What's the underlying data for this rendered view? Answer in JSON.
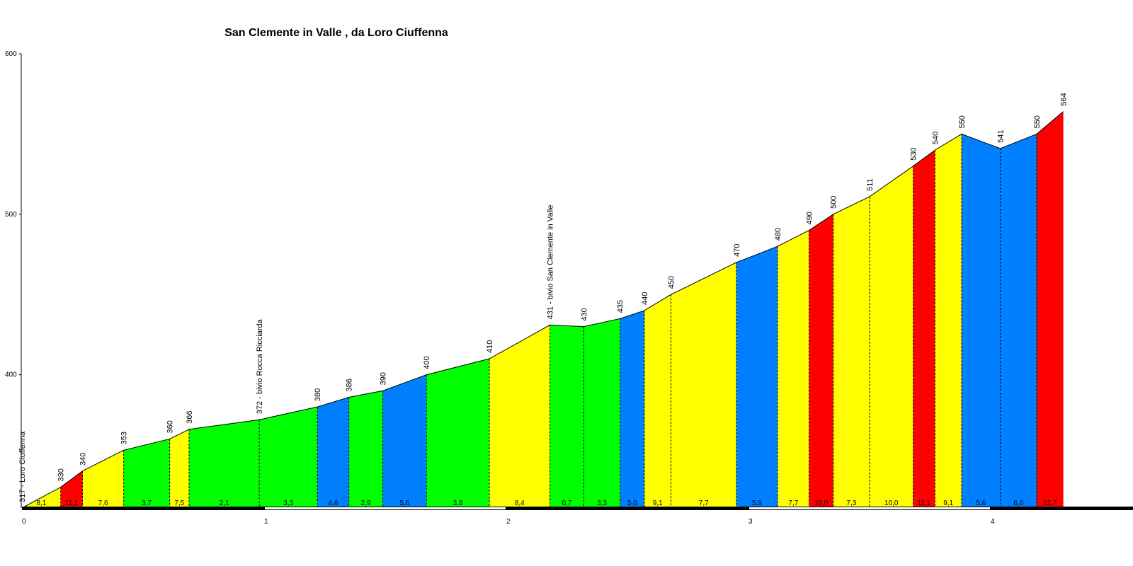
{
  "chart_data": {
    "type": "area",
    "title": "San Clemente in Valle , da Loro Ciuffenna",
    "xlabel": "",
    "ylabel": "",
    "xlim": [
      0,
      4.6
    ],
    "ylim": [
      317,
      600
    ],
    "x_ticks": [
      "0",
      "1",
      "2",
      "3",
      "4"
    ],
    "y_ticks": [
      "400",
      "500",
      "600"
    ],
    "grid": false,
    "legend": "none",
    "colors": {
      "yellow": "#ffff00",
      "red": "#ff0000",
      "green": "#00ff00",
      "blue": "#0080ff",
      "axis": "#000000"
    },
    "points": [
      {
        "x": 0.0,
        "elev": 317,
        "label": "317 - Loro Ciuffenna"
      },
      {
        "x": 0.16,
        "elev": 330,
        "label": "330"
      },
      {
        "x": 0.25,
        "elev": 340,
        "label": "340"
      },
      {
        "x": 0.42,
        "elev": 353,
        "label": "353"
      },
      {
        "x": 0.61,
        "elev": 360,
        "label": "360"
      },
      {
        "x": 0.69,
        "elev": 366,
        "label": "366"
      },
      {
        "x": 0.98,
        "elev": 372,
        "label": "372 - bivio Rocca Ricciarda"
      },
      {
        "x": 1.22,
        "elev": 380,
        "label": "380"
      },
      {
        "x": 1.35,
        "elev": 386,
        "label": "386"
      },
      {
        "x": 1.49,
        "elev": 390,
        "label": "390"
      },
      {
        "x": 1.67,
        "elev": 400,
        "label": "400"
      },
      {
        "x": 1.93,
        "elev": 410,
        "label": "410"
      },
      {
        "x": 2.18,
        "elev": 431,
        "label": "431 - bivio San Clemente in Valle"
      },
      {
        "x": 2.32,
        "elev": 430,
        "label": "430"
      },
      {
        "x": 2.47,
        "elev": 435,
        "label": "435"
      },
      {
        "x": 2.57,
        "elev": 440,
        "label": "440"
      },
      {
        "x": 2.68,
        "elev": 450,
        "label": "450"
      },
      {
        "x": 2.95,
        "elev": 470,
        "label": "470"
      },
      {
        "x": 3.12,
        "elev": 480,
        "label": "480"
      },
      {
        "x": 3.25,
        "elev": 490,
        "label": "490"
      },
      {
        "x": 3.35,
        "elev": 500,
        "label": "500"
      },
      {
        "x": 3.5,
        "elev": 511,
        "label": "511"
      },
      {
        "x": 3.68,
        "elev": 530,
        "label": "530"
      },
      {
        "x": 3.77,
        "elev": 540,
        "label": "540"
      },
      {
        "x": 3.88,
        "elev": 550,
        "label": "550"
      },
      {
        "x": 4.04,
        "elev": 541,
        "label": "541"
      },
      {
        "x": 4.19,
        "elev": 550,
        "label": "550"
      },
      {
        "x": 4.3,
        "elev": 564,
        "label": "564"
      }
    ],
    "segments": [
      {
        "grade": "8,1",
        "color": "yellow"
      },
      {
        "grade": "11,1",
        "color": "red"
      },
      {
        "grade": "7,6",
        "color": "yellow"
      },
      {
        "grade": "3,7",
        "color": "green"
      },
      {
        "grade": "7,5",
        "color": "yellow"
      },
      {
        "grade": "2,1",
        "color": "green"
      },
      {
        "grade": "3,3",
        "color": "green"
      },
      {
        "grade": "4,6",
        "color": "blue"
      },
      {
        "grade": "2,9",
        "color": "green"
      },
      {
        "grade": "5,6",
        "color": "blue"
      },
      {
        "grade": "3,8",
        "color": "green"
      },
      {
        "grade": "8,4",
        "color": "yellow"
      },
      {
        "grade": "0,7",
        "color": "green"
      },
      {
        "grade": "3,3",
        "color": "green"
      },
      {
        "grade": "5,0",
        "color": "blue"
      },
      {
        "grade": "9,1",
        "color": "yellow"
      },
      {
        "grade": "7,7",
        "color": "yellow"
      },
      {
        "grade": "5,9",
        "color": "blue"
      },
      {
        "grade": "7,7",
        "color": "yellow"
      },
      {
        "grade": "10,0",
        "color": "red"
      },
      {
        "grade": "7,3",
        "color": "yellow"
      },
      {
        "grade": "10,0",
        "color": "yellow"
      },
      {
        "grade": "11,1",
        "color": "red"
      },
      {
        "grade": "9,1",
        "color": "yellow"
      },
      {
        "grade": "5,6",
        "color": "blue"
      },
      {
        "grade": "6,0",
        "color": "blue"
      },
      {
        "grade": "12,7",
        "color": "red"
      }
    ]
  }
}
